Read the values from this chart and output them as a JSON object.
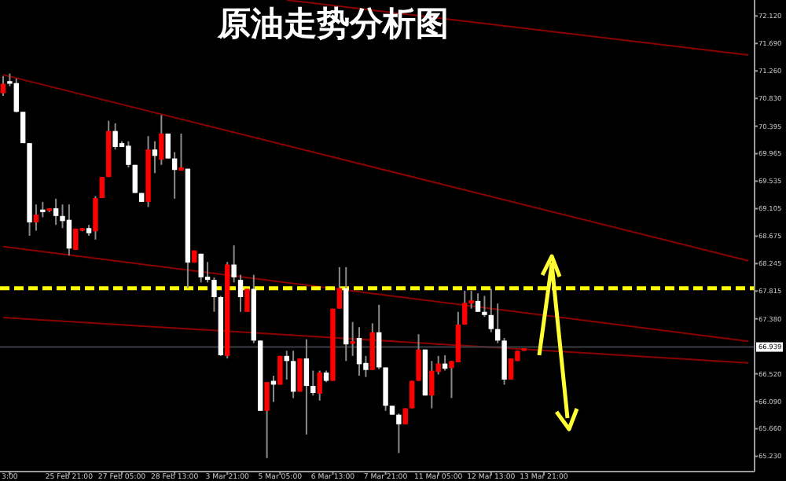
{
  "chart_data": {
    "type": "candlestick",
    "title": "原油走势分析图",
    "categories": [
      null,
      "3:00",
      null,
      null,
      null,
      null,
      null,
      null,
      null,
      null,
      "25 Feb 21:00",
      null,
      null,
      null,
      null,
      null,
      null,
      null,
      "27 Feb 05:00",
      null,
      null,
      null,
      null,
      null,
      null,
      null,
      "28 Feb 13:00",
      null,
      null,
      null,
      null,
      null,
      null,
      null,
      "3 Mar 21:00",
      null,
      null,
      null,
      null,
      null,
      null,
      null,
      "5 Mar 05:00",
      null,
      null,
      null,
      null,
      null,
      null,
      null,
      "6 Mar 13:00",
      null,
      null,
      null,
      null,
      null,
      null,
      null,
      "7 Mar 21:00",
      null,
      null,
      null,
      null,
      null,
      null,
      null,
      "11 Mar 05:00",
      null,
      null,
      null,
      null,
      null,
      null,
      null,
      "12 Mar 13:00",
      null,
      null,
      null,
      null,
      null,
      null,
      null,
      "13 Mar 21:00",
      null,
      null,
      null,
      null,
      null,
      null,
      null,
      null,
      null,
      null,
      null,
      null,
      null,
      null,
      null,
      null,
      null,
      null,
      null,
      null,
      null,
      null,
      null,
      null,
      null,
      null,
      null,
      null,
      null,
      null,
      null
    ],
    "ohlc": [
      [
        70.91,
        71.18,
        70.87,
        71.06
      ],
      [
        71.1,
        71.22,
        71.02,
        71.06
      ],
      [
        71.07,
        71.14,
        70.61,
        70.62
      ],
      [
        70.62,
        70.62,
        70.13,
        70.13
      ],
      [
        70.13,
        70.13,
        68.68,
        68.89
      ],
      [
        68.89,
        69.17,
        68.76,
        69.01
      ],
      [
        69.09,
        69.21,
        68.97,
        69.05
      ],
      [
        69.07,
        69.11,
        69.05,
        69.11
      ],
      [
        69.11,
        69.26,
        68.85,
        68.99
      ],
      [
        68.99,
        69.17,
        68.8,
        68.91
      ],
      [
        68.93,
        69.17,
        68.37,
        68.48
      ],
      [
        68.46,
        68.79,
        68.46,
        68.79
      ],
      [
        68.76,
        68.8,
        68.75,
        68.8
      ],
      [
        68.8,
        68.85,
        68.68,
        68.72
      ],
      [
        68.75,
        69.3,
        68.62,
        69.27
      ],
      [
        69.27,
        69.6,
        69.27,
        69.6
      ],
      [
        69.6,
        70.48,
        69.6,
        70.32
      ],
      [
        70.32,
        70.44,
        70.03,
        70.07
      ],
      [
        70.13,
        70.16,
        70.07,
        70.07
      ],
      [
        70.09,
        70.16,
        69.75,
        69.79
      ],
      [
        69.79,
        69.79,
        69.35,
        69.35
      ],
      [
        69.35,
        69.35,
        69.21,
        69.21
      ],
      [
        69.21,
        70.24,
        69.13,
        70.03
      ],
      [
        70.03,
        70.16,
        69.66,
        69.93
      ],
      [
        69.87,
        70.57,
        69.79,
        70.28
      ],
      [
        70.28,
        70.28,
        69.89,
        69.89
      ],
      [
        69.89,
        69.99,
        69.26,
        69.71
      ],
      [
        69.7,
        70.28,
        69.7,
        69.75
      ],
      [
        69.73,
        69.73,
        67.86,
        68.26
      ],
      [
        68.26,
        68.45,
        68.26,
        68.45
      ],
      [
        68.4,
        68.4,
        67.95,
        68.03
      ],
      [
        68.04,
        68.27,
        67.95,
        67.99
      ],
      [
        67.99,
        68.03,
        67.49,
        67.72
      ],
      [
        67.72,
        67.74,
        66.8,
        66.81
      ],
      [
        66.8,
        68.27,
        66.76,
        68.23
      ],
      [
        68.23,
        68.53,
        67.95,
        68.03
      ],
      [
        67.99,
        68.07,
        67.49,
        67.72
      ],
      [
        67.49,
        67.85,
        67.49,
        67.85
      ],
      [
        67.85,
        68.07,
        67.0,
        67.04
      ],
      [
        67.04,
        67.04,
        65.94,
        65.94
      ],
      [
        65.94,
        66.39,
        65.2,
        66.39
      ],
      [
        66.41,
        66.49,
        66.08,
        66.35
      ],
      [
        66.35,
        66.8,
        66.35,
        66.8
      ],
      [
        66.8,
        66.88,
        66.43,
        66.72
      ],
      [
        66.72,
        66.88,
        66.14,
        66.24
      ],
      [
        66.24,
        66.76,
        66.24,
        66.76
      ],
      [
        66.76,
        67.06,
        65.57,
        66.33
      ],
      [
        66.33,
        66.57,
        66.18,
        66.22
      ],
      [
        66.21,
        66.57,
        66.1,
        66.54
      ],
      [
        66.54,
        66.57,
        66.39,
        66.41
      ],
      [
        66.41,
        67.54,
        66.41,
        67.54
      ],
      [
        67.54,
        68.19,
        67.54,
        67.86
      ],
      [
        67.86,
        68.19,
        66.72,
        66.98
      ],
      [
        66.99,
        67.33,
        66.8,
        67.03
      ],
      [
        67.08,
        67.25,
        66.49,
        66.67
      ],
      [
        66.69,
        66.8,
        66.47,
        66.58
      ],
      [
        66.58,
        67.31,
        66.58,
        67.17
      ],
      [
        67.17,
        67.6,
        66.59,
        66.62
      ],
      [
        66.62,
        66.62,
        65.94,
        66.02
      ],
      [
        66.02,
        66.02,
        65.88,
        65.88
      ],
      [
        65.88,
        65.9,
        65.28,
        65.73
      ],
      [
        65.73,
        65.98,
        65.73,
        65.98
      ],
      [
        65.98,
        66.41,
        65.98,
        66.41
      ],
      [
        66.41,
        67.14,
        66.41,
        66.9
      ],
      [
        66.9,
        66.9,
        66.18,
        66.18
      ],
      [
        66.18,
        66.72,
        65.98,
        66.57
      ],
      [
        66.55,
        66.8,
        66.51,
        66.68
      ],
      [
        66.68,
        66.81,
        66.57,
        66.6
      ],
      [
        66.61,
        66.72,
        66.14,
        66.72
      ],
      [
        66.7,
        67.49,
        66.7,
        67.29
      ],
      [
        67.29,
        67.82,
        67.29,
        67.63
      ],
      [
        67.62,
        67.82,
        67.54,
        67.67
      ],
      [
        67.66,
        67.78,
        67.49,
        67.49
      ],
      [
        67.49,
        67.74,
        67.41,
        67.44
      ],
      [
        67.44,
        67.85,
        67.17,
        67.22
      ],
      [
        67.22,
        67.62,
        67.0,
        67.04
      ],
      [
        67.04,
        67.08,
        66.35,
        66.43
      ],
      [
        66.43,
        66.76,
        66.43,
        66.76
      ],
      [
        66.72,
        66.88,
        66.72,
        66.88
      ],
      [
        66.88,
        66.92,
        66.88,
        66.92
      ],
      null,
      null,
      null,
      null,
      null,
      null,
      null,
      null,
      null,
      null,
      null,
      null,
      null,
      null,
      null,
      null,
      null,
      null,
      null,
      null,
      null,
      null,
      null,
      null,
      null,
      null,
      null,
      null,
      null,
      null,
      null,
      null,
      null,
      null
    ],
    "series": [
      {
        "type": "line",
        "color": "#8b0000",
        "values": [
          71.2,
          null,
          null,
          null,
          null,
          null,
          null,
          null,
          null,
          null,
          null,
          null,
          null,
          null,
          null,
          null,
          null,
          null,
          null,
          null,
          null,
          null,
          null,
          null,
          null,
          null,
          null,
          null,
          null,
          null,
          null,
          null,
          null,
          null,
          null,
          null,
          null,
          null,
          null,
          null,
          null,
          null,
          null,
          null,
          null,
          null,
          null,
          null,
          null,
          null,
          null,
          null,
          null,
          null,
          null,
          null,
          null,
          null,
          null,
          null,
          null,
          null,
          null,
          null,
          null,
          null,
          null,
          null,
          null,
          null,
          null,
          null,
          null,
          null,
          null,
          null,
          null,
          null,
          null,
          null,
          null,
          null,
          null,
          null,
          null,
          null,
          null,
          null,
          null,
          null,
          null,
          null,
          null,
          null,
          null,
          null,
          null,
          null,
          null,
          null,
          null,
          null,
          null,
          null,
          null,
          null,
          null,
          null,
          null,
          null,
          null,
          null,
          null,
          68.29
        ]
      },
      {
        "type": "line",
        "color": "#8b0000",
        "values": [
          68.51,
          null,
          null,
          null,
          null,
          null,
          null,
          null,
          null,
          null,
          null,
          null,
          null,
          null,
          null,
          null,
          null,
          null,
          null,
          null,
          null,
          null,
          null,
          null,
          null,
          null,
          null,
          null,
          null,
          null,
          null,
          null,
          null,
          null,
          null,
          null,
          null,
          null,
          null,
          null,
          null,
          null,
          null,
          null,
          null,
          null,
          null,
          null,
          null,
          null,
          null,
          null,
          null,
          null,
          null,
          null,
          null,
          null,
          null,
          null,
          null,
          null,
          null,
          null,
          null,
          null,
          null,
          null,
          null,
          null,
          null,
          null,
          null,
          null,
          null,
          null,
          null,
          null,
          null,
          null,
          null,
          null,
          null,
          null,
          null,
          null,
          null,
          null,
          null,
          null,
          null,
          null,
          null,
          null,
          null,
          null,
          null,
          null,
          null,
          null,
          null,
          null,
          null,
          null,
          null,
          null,
          null,
          null,
          null,
          null,
          null,
          null,
          null,
          67.03
        ]
      },
      {
        "type": "line",
        "color": "#8b0000",
        "values": [
          67.4,
          null,
          null,
          null,
          null,
          null,
          null,
          null,
          null,
          null,
          null,
          null,
          null,
          null,
          null,
          null,
          null,
          null,
          null,
          null,
          null,
          null,
          null,
          null,
          null,
          null,
          null,
          null,
          null,
          null,
          null,
          null,
          null,
          null,
          null,
          null,
          null,
          null,
          null,
          null,
          null,
          null,
          null,
          null,
          null,
          null,
          null,
          null,
          null,
          null,
          null,
          null,
          null,
          null,
          null,
          null,
          null,
          null,
          null,
          null,
          null,
          null,
          null,
          null,
          null,
          null,
          null,
          null,
          null,
          null,
          null,
          null,
          null,
          null,
          null,
          null,
          null,
          null,
          null,
          null,
          null,
          null,
          null,
          null,
          null,
          null,
          null,
          null,
          null,
          null,
          null,
          null,
          null,
          null,
          null,
          null,
          null,
          null,
          null,
          null,
          null,
          null,
          null,
          null,
          null,
          null,
          null,
          null,
          null,
          null,
          null,
          null,
          null,
          66.69
        ]
      },
      {
        "type": "line",
        "color": "#8b0000",
        "values": [
          null,
          null,
          null,
          null,
          null,
          null,
          null,
          null,
          null,
          null,
          null,
          null,
          null,
          null,
          null,
          null,
          null,
          null,
          null,
          null,
          null,
          null,
          null,
          null,
          null,
          null,
          null,
          null,
          null,
          null,
          null,
          null,
          null,
          null,
          null,
          null,
          null,
          null,
          null,
          null,
          null,
          null,
          null,
          72.37,
          null,
          null,
          null,
          null,
          null,
          null,
          null,
          null,
          null,
          null,
          null,
          null,
          null,
          null,
          null,
          null,
          null,
          null,
          null,
          null,
          null,
          null,
          null,
          null,
          null,
          null,
          null,
          null,
          null,
          null,
          null,
          null,
          null,
          null,
          null,
          null,
          null,
          null,
          null,
          null,
          null,
          null,
          null,
          null,
          null,
          null,
          null,
          null,
          null,
          null,
          null,
          null,
          null,
          null,
          null,
          null,
          null,
          null,
          null,
          null,
          null,
          null,
          null,
          null,
          null,
          null,
          null,
          null,
          null,
          71.51
        ]
      }
    ],
    "ylim": [
      64.99,
      72.37
    ],
    "yticks": [
      {
        "value": 72.12,
        "label": "72.120"
      },
      {
        "value": 71.69,
        "label": "71.690"
      },
      {
        "value": 71.26,
        "label": "71.260"
      },
      {
        "value": 70.83,
        "label": "70.830"
      },
      {
        "value": 70.395,
        "label": "70.395"
      },
      {
        "value": 69.965,
        "label": "69.965"
      },
      {
        "value": 69.535,
        "label": "69.535"
      },
      {
        "value": 69.105,
        "label": "69.105"
      },
      {
        "value": 68.675,
        "label": "68.675"
      },
      {
        "value": 68.245,
        "label": "68.245"
      },
      {
        "value": 67.815,
        "label": "67.815"
      },
      {
        "value": 67.38,
        "label": "67.380"
      },
      {
        "value": 66.52,
        "label": "66.520"
      },
      {
        "value": 66.09,
        "label": "66.090"
      },
      {
        "value": 65.66,
        "label": "65.660"
      },
      {
        "value": 65.23,
        "label": "65.230"
      }
    ],
    "ref_lines": [
      {
        "axis": "y",
        "value": 67.86,
        "color": "#ffff00",
        "line_style": "dashed"
      },
      {
        "axis": "y",
        "value": 66.939,
        "label": "66.939",
        "color": "#3a3f44",
        "line_style": "solid"
      }
    ]
  }
}
